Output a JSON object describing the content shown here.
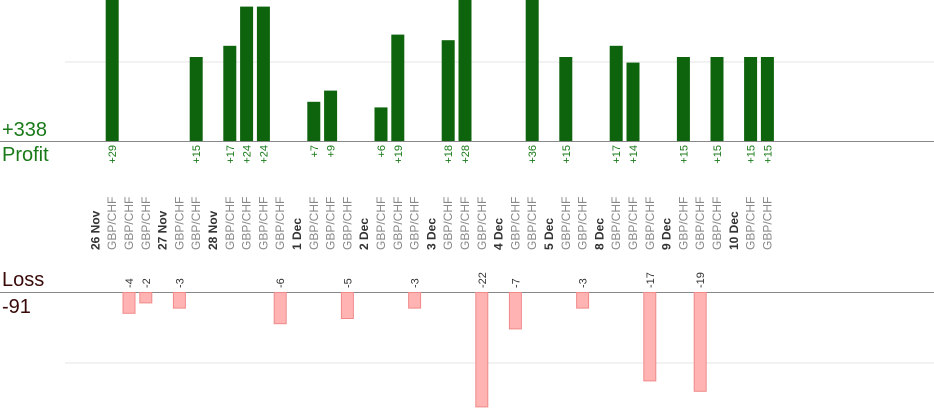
{
  "labels": {
    "profit_total": "+338",
    "profit_word": "Profit",
    "loss_word": "Loss",
    "loss_total": "-91"
  },
  "colors": {
    "profit_bar": "#0d640d",
    "profit_text": "#1a7a1a",
    "loss_bar": "#ffb3b3",
    "loss_bar_border": "#f08a8a",
    "date_text": "#333333",
    "pair_text": "#888888",
    "grid": "#e6e6e6",
    "axis": "#888888"
  },
  "chart_data": {
    "type": "bar",
    "pair": "GBP/CHF",
    "dates": [
      "26 Nov",
      "27 Nov",
      "28 Nov",
      "1 Dec",
      "2 Dec",
      "3 Dec",
      "4 Dec",
      "5 Dec",
      "8 Dec",
      "9 Dec",
      "10 Dec"
    ],
    "columns": [
      {
        "date": "26 Nov",
        "pair": "GBP/CHF",
        "profit": 29
      },
      {
        "date": "26 Nov",
        "pair": "GBP/CHF",
        "loss": -4
      },
      {
        "date": "26 Nov",
        "pair": "GBP/CHF",
        "loss": -2
      },
      {
        "date": "27 Nov",
        "pair": "GBP/CHF",
        "loss": -3
      },
      {
        "date": "27 Nov",
        "pair": "GBP/CHF",
        "profit": 15
      },
      {
        "date": "28 Nov",
        "pair": "GBP/CHF",
        "profit": 17
      },
      {
        "date": "28 Nov",
        "pair": "GBP/CHF",
        "profit": 24
      },
      {
        "date": "28 Nov",
        "pair": "GBP/CHF",
        "profit": 24
      },
      {
        "date": "28 Nov",
        "pair": "GBP/CHF",
        "loss": -6
      },
      {
        "date": "1 Dec",
        "pair": "GBP/CHF",
        "profit": 7
      },
      {
        "date": "1 Dec",
        "pair": "GBP/CHF",
        "profit": 9
      },
      {
        "date": "1 Dec",
        "pair": "GBP/CHF",
        "loss": -5
      },
      {
        "date": "2 Dec",
        "pair": "GBP/CHF",
        "profit": 6
      },
      {
        "date": "2 Dec",
        "pair": "GBP/CHF",
        "profit": 19
      },
      {
        "date": "2 Dec",
        "pair": "GBP/CHF",
        "loss": -3
      },
      {
        "date": "3 Dec",
        "pair": "GBP/CHF",
        "profit": 18
      },
      {
        "date": "3 Dec",
        "pair": "GBP/CHF",
        "profit": 28
      },
      {
        "date": "3 Dec",
        "pair": "GBP/CHF",
        "loss": -22
      },
      {
        "date": "4 Dec",
        "pair": "GBP/CHF",
        "loss": -7
      },
      {
        "date": "4 Dec",
        "pair": "GBP/CHF",
        "profit": 36
      },
      {
        "date": "5 Dec",
        "pair": "GBP/CHF",
        "profit": 15
      },
      {
        "date": "5 Dec",
        "pair": "GBP/CHF",
        "loss": -3
      },
      {
        "date": "8 Dec",
        "pair": "GBP/CHF",
        "profit": 17
      },
      {
        "date": "8 Dec",
        "pair": "GBP/CHF",
        "profit": 14
      },
      {
        "date": "8 Dec",
        "pair": "GBP/CHF",
        "loss": -17
      },
      {
        "date": "9 Dec",
        "pair": "GBP/CHF",
        "profit": 15
      },
      {
        "date": "9 Dec",
        "pair": "GBP/CHF",
        "loss": -19
      },
      {
        "date": "9 Dec",
        "pair": "GBP/CHF",
        "profit": 15
      },
      {
        "date": "10 Dec",
        "pair": "GBP/CHF",
        "profit": 15
      },
      {
        "date": "10 Dec",
        "pair": "GBP/CHF",
        "profit": 15
      }
    ],
    "grid": true
  }
}
